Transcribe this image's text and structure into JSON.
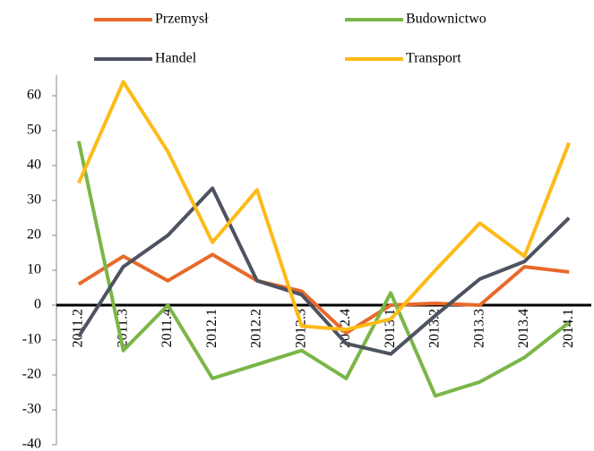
{
  "chart_data": {
    "type": "line",
    "categories": [
      "2011.2",
      "2011.3",
      "2011.4",
      "2012.1",
      "2012.2",
      "2012.3",
      "2012.4",
      "2013.1",
      "2013.2",
      "2013.3",
      "2013.4",
      "2014.1"
    ],
    "series": [
      {
        "name": "Przemysł",
        "color": "#e8692a",
        "values": [
          6,
          14,
          7,
          14.5,
          7,
          4,
          -8,
          0,
          0.5,
          0,
          11,
          9.5
        ]
      },
      {
        "name": "Budownictwo",
        "color": "#7ab648",
        "values": [
          47,
          -13,
          0,
          -21,
          -17,
          -13,
          -21,
          3.5,
          -26,
          -22,
          -15,
          -5
        ]
      },
      {
        "name": "Handel",
        "color": "#4d5360",
        "values": [
          -9,
          11,
          20,
          33.5,
          7,
          3,
          -11,
          -14,
          -3,
          7.5,
          12.5,
          25
        ]
      },
      {
        "name": "Transport",
        "color": "#fdbb17",
        "values": [
          35,
          64,
          44,
          18,
          33,
          -6,
          -7,
          -4,
          10,
          23.5,
          14,
          46.5
        ]
      }
    ],
    "ylim": [
      -40,
      66
    ],
    "yticks": [
      -40,
      -30,
      -20,
      -10,
      0,
      10,
      20,
      30,
      40,
      50,
      60
    ],
    "grid": false,
    "legend": "top"
  }
}
